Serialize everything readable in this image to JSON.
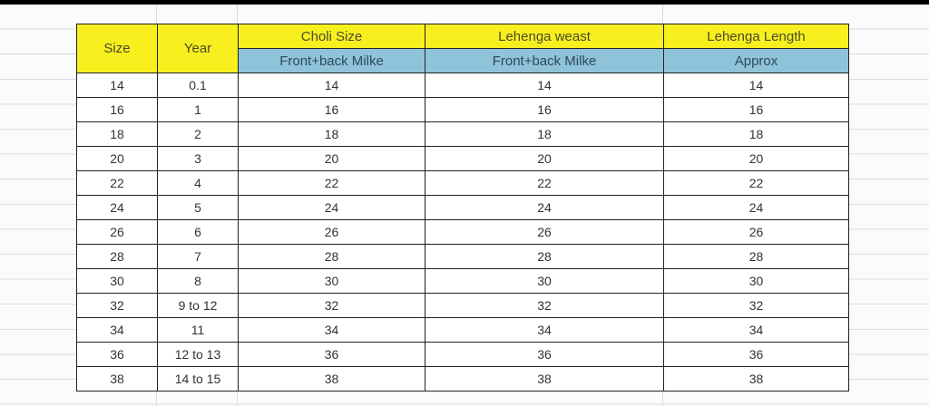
{
  "header": {
    "size": "Size",
    "year": "Year",
    "choli": "Choli Size",
    "choli_sub": "Front+back Milke",
    "waist": "Lehenga weast",
    "waist_sub": "Front+back Milke",
    "length": "Lehenga Length",
    "length_sub": "Approx"
  },
  "colors": {
    "header_yellow": "#f8ef1e",
    "header_blue": "#8fc3da"
  },
  "rows": [
    [
      "14",
      "0.1",
      "14",
      "14",
      "14"
    ],
    [
      "16",
      "1",
      "16",
      "16",
      "16"
    ],
    [
      "18",
      "2",
      "18",
      "18",
      "18"
    ],
    [
      "20",
      "3",
      "20",
      "20",
      "20"
    ],
    [
      "22",
      "4",
      "22",
      "22",
      "22"
    ],
    [
      "24",
      "5",
      "24",
      "24",
      "24"
    ],
    [
      "26",
      "6",
      "26",
      "26",
      "26"
    ],
    [
      "28",
      "7",
      "28",
      "28",
      "28"
    ],
    [
      "30",
      "8",
      "30",
      "30",
      "30"
    ],
    [
      "32",
      "9 to 12",
      "32",
      "32",
      "32"
    ],
    [
      "34",
      "11",
      "34",
      "34",
      "34"
    ],
    [
      "36",
      "12 to 13",
      "36",
      "36",
      "36"
    ],
    [
      "38",
      "14 to 15",
      "38",
      "38",
      "38"
    ]
  ]
}
